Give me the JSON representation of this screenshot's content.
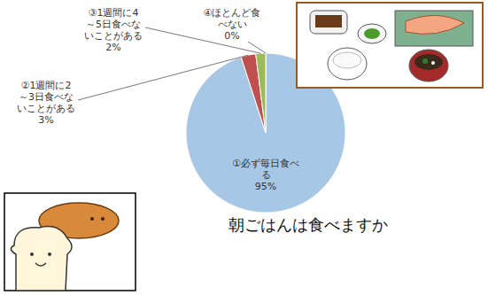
{
  "chart_data": {
    "type": "pie",
    "title": "朝ごはんは食べますか",
    "categories": [
      "①必ず毎日食べる",
      "②1週間に2～3日食べないことがある",
      "③1週間に4～5日食べないことがある",
      "④ほとんど食べない"
    ],
    "values": [
      95,
      3,
      2,
      0
    ],
    "value_labels": [
      "95%",
      "3%",
      "2%",
      "0%"
    ],
    "colors": [
      "#a7c7e7",
      "#c0504d",
      "#9bbb59",
      "#8064a2"
    ],
    "data_labels": true
  }
}
